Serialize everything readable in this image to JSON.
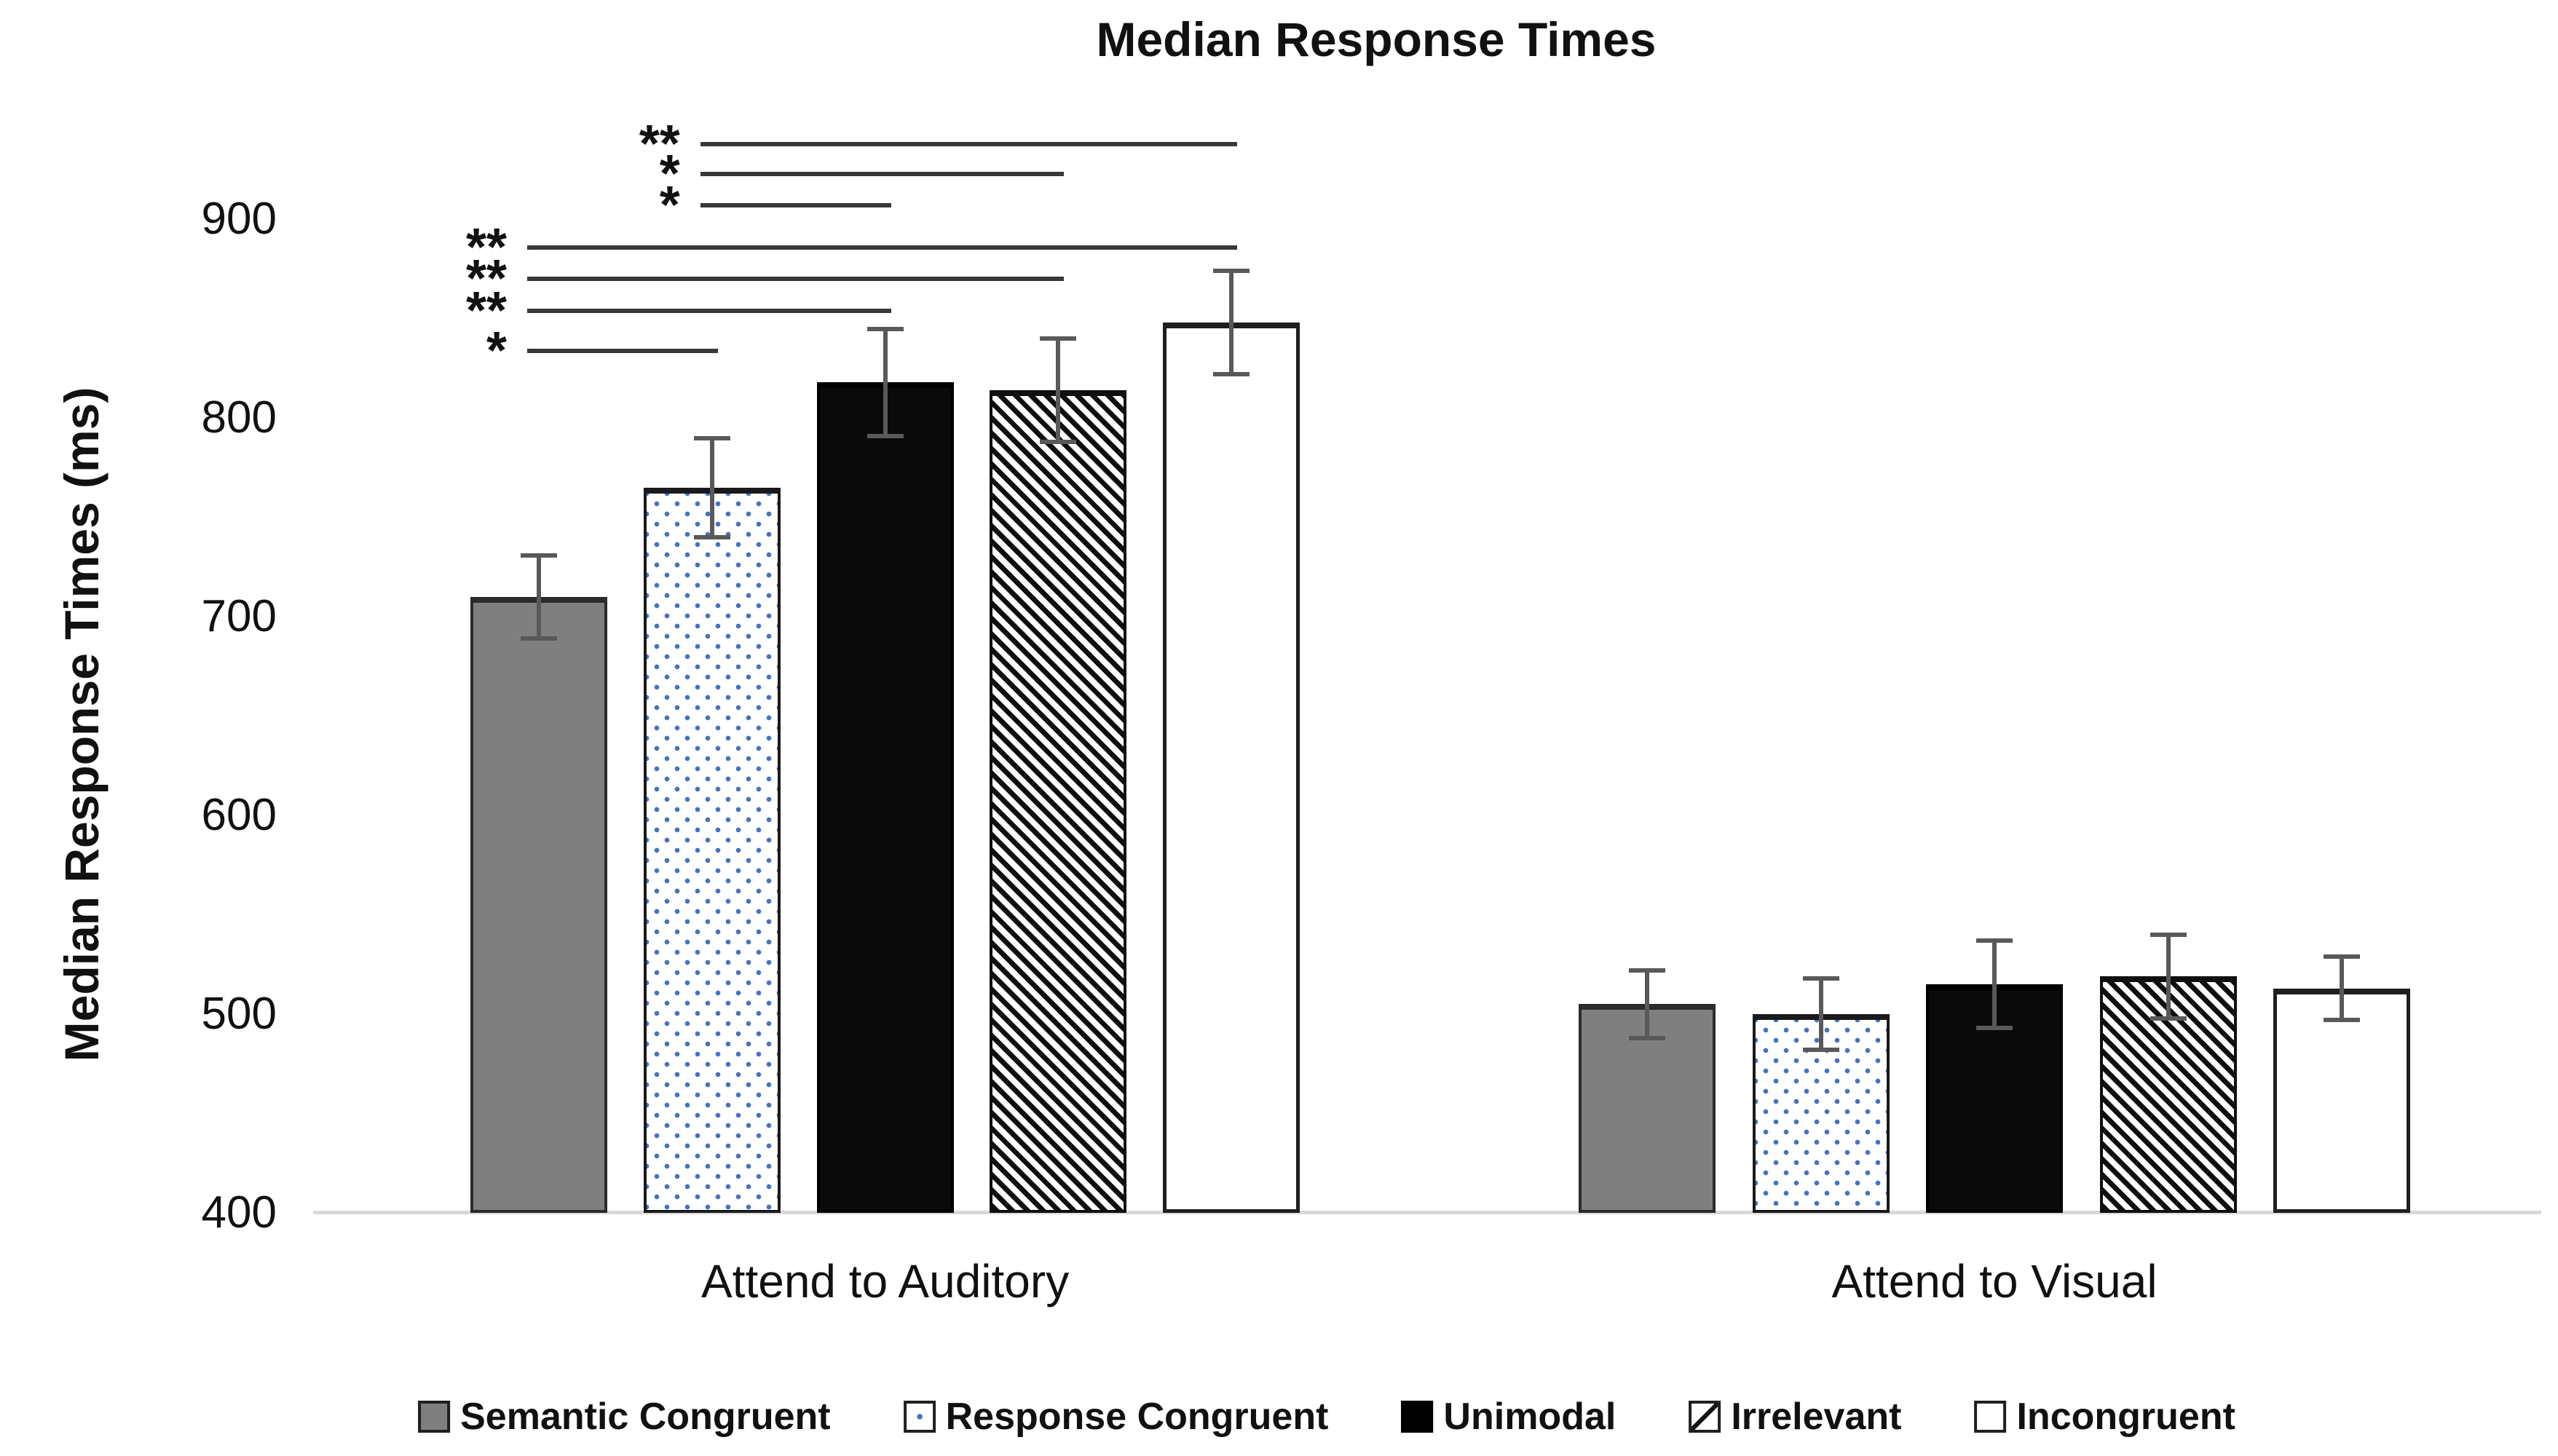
{
  "chart_data": {
    "type": "bar",
    "title": "Median Response Times",
    "ylabel": "Median Response Times (ms)",
    "ylim": [
      400,
      950
    ],
    "yticks": [
      900,
      800,
      700,
      600,
      500,
      400
    ],
    "grid": false,
    "legend_position": "bottom",
    "categories": [
      "Attend to Auditory",
      "Attend to Visual"
    ],
    "series": [
      {
        "name": "Semantic Congruent",
        "pattern": "solid-gray",
        "values": [
          710,
          505
        ],
        "errors": [
          21,
          17
        ]
      },
      {
        "name": "Response Congruent",
        "pattern": "blue-dotted",
        "values": [
          765,
          500
        ],
        "errors": [
          25,
          18
        ]
      },
      {
        "name": "Unimodal",
        "pattern": "solid-black",
        "values": [
          818,
          515
        ],
        "errors": [
          27,
          22
        ]
      },
      {
        "name": "Irrelevant",
        "pattern": "diagonal-hatch",
        "values": [
          814,
          519
        ],
        "errors": [
          26,
          21
        ]
      },
      {
        "name": "Incongruent",
        "pattern": "white-outline",
        "values": [
          848,
          513
        ],
        "errors": [
          26,
          16
        ]
      }
    ],
    "significance": [
      {
        "category": "Attend to Auditory",
        "from": "Semantic Congruent",
        "to": "Response Congruent",
        "stars": "*",
        "line_y": 834
      },
      {
        "category": "Attend to Auditory",
        "from": "Semantic Congruent",
        "to": "Unimodal",
        "stars": "**",
        "line_y": 854
      },
      {
        "category": "Attend to Auditory",
        "from": "Semantic Congruent",
        "to": "Irrelevant",
        "stars": "**",
        "line_y": 870
      },
      {
        "category": "Attend to Auditory",
        "from": "Semantic Congruent",
        "to": "Incongruent",
        "stars": "**",
        "line_y": 886
      },
      {
        "category": "Attend to Auditory",
        "from": "Response Congruent",
        "to": "Unimodal",
        "stars": "*",
        "line_y": 907
      },
      {
        "category": "Attend to Auditory",
        "from": "Response Congruent",
        "to": "Irrelevant",
        "stars": "*",
        "line_y": 923
      },
      {
        "category": "Attend to Auditory",
        "from": "Response Congruent",
        "to": "Incongruent",
        "stars": "**",
        "line_y": 938
      }
    ]
  },
  "colors": {
    "bar_gray": "#7f7f7f",
    "dot_blue": "#4472c4",
    "error_bar": "#595959",
    "axis_line": "#d9d9d9",
    "significance_line": "#383838",
    "text": "#111111"
  }
}
